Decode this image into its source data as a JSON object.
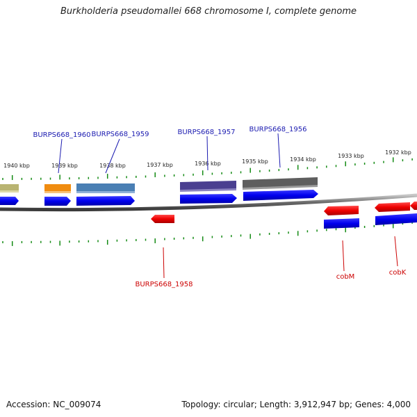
{
  "title": "Burkholderia pseudomallei 668 chromosome I, complete genome",
  "accession": "Accession: NC_009074",
  "summary": "Topology: circular; Length: 3,912,947 bp; Genes: 4,000",
  "colors": {
    "backbone": "#7a7a7a",
    "tick": "#138a13",
    "forward_gene": "#0000ee",
    "reverse_gene": "#ee0000",
    "forward_label": "#1a1ab0",
    "reverse_label": "#cc0000"
  },
  "kbp_ticks": [
    "1940 kbp",
    "1939 kbp",
    "1938 kbp",
    "1937 kbp",
    "1936 kbp",
    "1935 kbp",
    "1934 kbp",
    "1933 kbp",
    "1932 kbp"
  ],
  "feature_bars": [
    {
      "name": "bar-1940",
      "color": "#b9b472"
    },
    {
      "name": "bar-1960",
      "color": "#f08c10"
    },
    {
      "name": "bar-1959",
      "color": "#4a7fb4"
    },
    {
      "name": "bar-1957",
      "color": "#4a3f90"
    },
    {
      "name": "bar-1956",
      "color": "#5e5e5e"
    }
  ],
  "forward_genes": [
    "gene-edge-left",
    "BURPS668_1960",
    "BURPS668_1959",
    "BURPS668_1957",
    "BURPS668_1956"
  ],
  "reverse_genes": [
    "BURPS668_1958",
    "cobM",
    "cobK",
    "gene-edge-right"
  ],
  "labels": {
    "b1960": "BURPS668_1960",
    "b1959": "BURPS668_1959",
    "b1957": "BURPS668_1957",
    "b1956": "BURPS668_1956",
    "b1958": "BURPS668_1958",
    "cobM": "cobM",
    "cobK": "cobK"
  }
}
